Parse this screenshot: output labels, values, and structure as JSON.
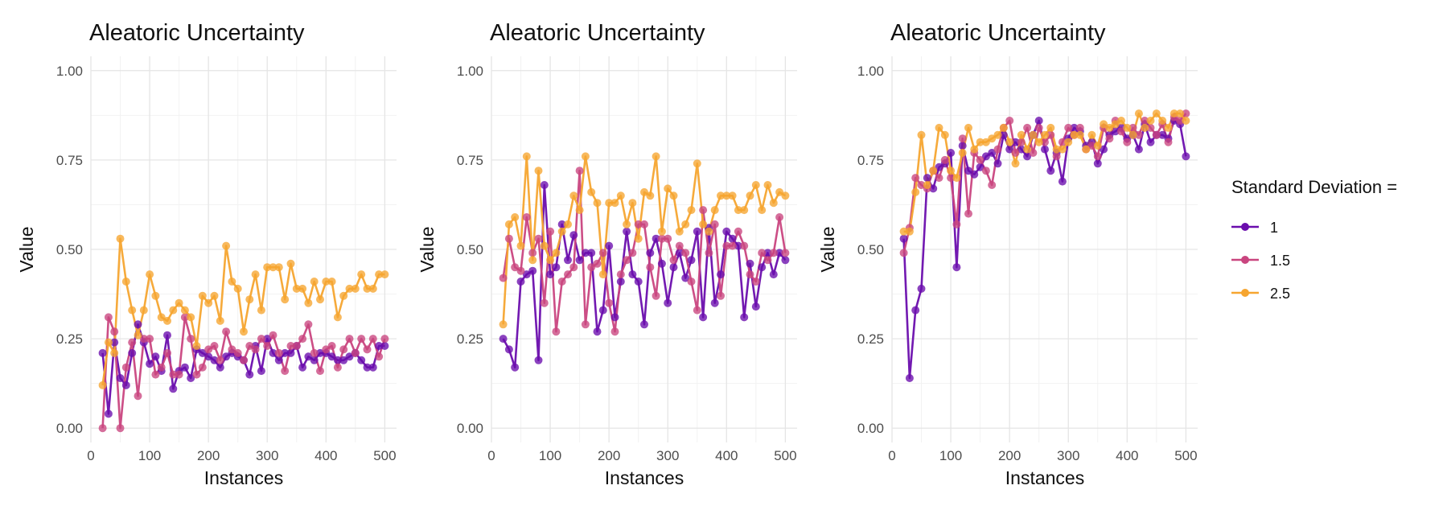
{
  "legend": {
    "title": "Standard Deviation =",
    "position": "right",
    "entries": [
      {
        "label": "1",
        "color": "#6a0dad"
      },
      {
        "label": "1.5",
        "color": "#c9457f"
      },
      {
        "label": "2.5",
        "color": "#f6a530"
      }
    ]
  },
  "chart_data": [
    {
      "type": "line",
      "title": "Aleatoric Uncertainty",
      "xlabel": "Instances",
      "ylabel": "Value",
      "xlim": [
        0,
        520
      ],
      "ylim": [
        -0.04,
        1.04
      ],
      "xticks": [
        0,
        100,
        200,
        300,
        400,
        500
      ],
      "xtick_labels": [
        "0",
        "100",
        "200",
        "300",
        "400",
        "500"
      ],
      "yticks": [
        0,
        0.25,
        0.5,
        0.75,
        1
      ],
      "ytick_labels": [
        "0.00",
        "0.25",
        "0.50",
        "0.75",
        "1.00"
      ],
      "grid": true,
      "x": [
        20,
        30,
        40,
        50,
        60,
        70,
        80,
        90,
        100,
        110,
        120,
        130,
        140,
        150,
        160,
        170,
        180,
        190,
        200,
        210,
        220,
        230,
        240,
        250,
        260,
        270,
        280,
        290,
        300,
        310,
        320,
        330,
        340,
        350,
        360,
        370,
        380,
        390,
        400,
        410,
        420,
        430,
        440,
        450,
        460,
        470,
        480,
        490,
        500
      ],
      "series": [
        {
          "name": "1",
          "color": "#6a0dad",
          "values": [
            0.21,
            0.04,
            0.24,
            0.14,
            0.12,
            0.21,
            0.29,
            0.24,
            0.18,
            0.2,
            0.16,
            0.26,
            0.11,
            0.16,
            0.17,
            0.14,
            0.22,
            0.21,
            0.2,
            0.19,
            0.17,
            0.2,
            0.21,
            0.2,
            0.19,
            0.15,
            0.23,
            0.16,
            0.25,
            0.21,
            0.19,
            0.21,
            0.21,
            0.23,
            0.17,
            0.2,
            0.19,
            0.21,
            0.21,
            0.2,
            0.19,
            0.19,
            0.2,
            0.21,
            0.19,
            0.17,
            0.17,
            0.23,
            0.23
          ]
        },
        {
          "name": "1.5",
          "color": "#c9457f",
          "values": [
            0.0,
            0.31,
            0.27,
            0.0,
            0.17,
            0.24,
            0.09,
            0.25,
            0.25,
            0.15,
            0.17,
            0.21,
            0.15,
            0.15,
            0.31,
            0.25,
            0.15,
            0.17,
            0.22,
            0.23,
            0.19,
            0.27,
            0.22,
            0.21,
            0.19,
            0.23,
            0.22,
            0.25,
            0.23,
            0.26,
            0.21,
            0.16,
            0.23,
            0.23,
            0.25,
            0.29,
            0.21,
            0.16,
            0.22,
            0.23,
            0.17,
            0.22,
            0.25,
            0.21,
            0.25,
            0.22,
            0.25,
            0.2,
            0.25
          ]
        },
        {
          "name": "2.5",
          "color": "#f6a530",
          "values": [
            0.12,
            0.24,
            0.21,
            0.53,
            0.41,
            0.33,
            0.26,
            0.33,
            0.43,
            0.37,
            0.31,
            0.3,
            0.33,
            0.35,
            0.33,
            0.31,
            0.23,
            0.37,
            0.35,
            0.37,
            0.3,
            0.51,
            0.41,
            0.39,
            0.27,
            0.36,
            0.43,
            0.33,
            0.45,
            0.45,
            0.45,
            0.36,
            0.46,
            0.39,
            0.39,
            0.35,
            0.41,
            0.36,
            0.41,
            0.41,
            0.31,
            0.37,
            0.39,
            0.39,
            0.43,
            0.39,
            0.39,
            0.43,
            0.43
          ]
        }
      ]
    },
    {
      "type": "line",
      "title": "Aleatoric Uncertainty",
      "xlabel": "Instances",
      "ylabel": "Value",
      "xlim": [
        0,
        520
      ],
      "ylim": [
        -0.04,
        1.04
      ],
      "xticks": [
        0,
        100,
        200,
        300,
        400,
        500
      ],
      "xtick_labels": [
        "0",
        "100",
        "200",
        "300",
        "400",
        "500"
      ],
      "yticks": [
        0,
        0.25,
        0.5,
        0.75,
        1
      ],
      "ytick_labels": [
        "0.00",
        "0.25",
        "0.50",
        "0.75",
        "1.00"
      ],
      "grid": true,
      "x": [
        20,
        30,
        40,
        50,
        60,
        70,
        80,
        90,
        100,
        110,
        120,
        130,
        140,
        150,
        160,
        170,
        180,
        190,
        200,
        210,
        220,
        230,
        240,
        250,
        260,
        270,
        280,
        290,
        300,
        310,
        320,
        330,
        340,
        350,
        360,
        370,
        380,
        390,
        400,
        410,
        420,
        430,
        440,
        450,
        460,
        470,
        480,
        490,
        500
      ],
      "series": [
        {
          "name": "1",
          "color": "#6a0dad",
          "values": [
            0.25,
            0.22,
            0.17,
            0.41,
            0.43,
            0.44,
            0.19,
            0.68,
            0.43,
            0.45,
            0.57,
            0.47,
            0.54,
            0.47,
            0.49,
            0.49,
            0.27,
            0.33,
            0.51,
            0.31,
            0.41,
            0.55,
            0.43,
            0.41,
            0.29,
            0.49,
            0.53,
            0.46,
            0.35,
            0.45,
            0.49,
            0.42,
            0.47,
            0.55,
            0.31,
            0.56,
            0.35,
            0.43,
            0.55,
            0.53,
            0.51,
            0.31,
            0.46,
            0.34,
            0.45,
            0.49,
            0.43,
            0.49,
            0.47
          ]
        },
        {
          "name": "1.5",
          "color": "#c9457f",
          "values": [
            0.42,
            0.53,
            0.45,
            0.44,
            0.59,
            0.49,
            0.53,
            0.35,
            0.55,
            0.27,
            0.41,
            0.43,
            0.45,
            0.72,
            0.29,
            0.45,
            0.46,
            0.49,
            0.35,
            0.27,
            0.43,
            0.47,
            0.49,
            0.57,
            0.57,
            0.45,
            0.37,
            0.53,
            0.53,
            0.47,
            0.51,
            0.49,
            0.41,
            0.33,
            0.61,
            0.49,
            0.57,
            0.37,
            0.51,
            0.51,
            0.55,
            0.51,
            0.43,
            0.41,
            0.49,
            0.47,
            0.49,
            0.59,
            0.49
          ]
        },
        {
          "name": "2.5",
          "color": "#f6a530",
          "values": [
            0.29,
            0.57,
            0.59,
            0.51,
            0.76,
            0.47,
            0.72,
            0.51,
            0.47,
            0.49,
            0.55,
            0.57,
            0.65,
            0.61,
            0.76,
            0.66,
            0.63,
            0.43,
            0.63,
            0.63,
            0.65,
            0.57,
            0.63,
            0.53,
            0.66,
            0.65,
            0.76,
            0.55,
            0.67,
            0.65,
            0.55,
            0.57,
            0.61,
            0.74,
            0.57,
            0.55,
            0.61,
            0.65,
            0.65,
            0.65,
            0.61,
            0.61,
            0.65,
            0.68,
            0.61,
            0.68,
            0.63,
            0.66,
            0.65
          ]
        }
      ]
    },
    {
      "type": "line",
      "title": "Aleatoric Uncertainty",
      "xlabel": "Instances",
      "ylabel": "Value",
      "xlim": [
        0,
        520
      ],
      "ylim": [
        -0.04,
        1.04
      ],
      "xticks": [
        0,
        100,
        200,
        300,
        400,
        500
      ],
      "xtick_labels": [
        "0",
        "100",
        "200",
        "300",
        "400",
        "500"
      ],
      "yticks": [
        0,
        0.25,
        0.5,
        0.75,
        1
      ],
      "ytick_labels": [
        "0.00",
        "0.25",
        "0.50",
        "0.75",
        "1.00"
      ],
      "grid": true,
      "x": [
        20,
        30,
        40,
        50,
        60,
        70,
        80,
        90,
        100,
        110,
        120,
        130,
        140,
        150,
        160,
        170,
        180,
        190,
        200,
        210,
        220,
        230,
        240,
        250,
        260,
        270,
        280,
        290,
        300,
        310,
        320,
        330,
        340,
        350,
        360,
        370,
        380,
        390,
        400,
        410,
        420,
        430,
        440,
        450,
        460,
        470,
        480,
        490,
        500
      ],
      "series": [
        {
          "name": "1",
          "color": "#6a0dad",
          "values": [
            0.53,
            0.14,
            0.33,
            0.39,
            0.7,
            0.67,
            0.73,
            0.74,
            0.77,
            0.45,
            0.79,
            0.72,
            0.71,
            0.73,
            0.76,
            0.77,
            0.74,
            0.82,
            0.78,
            0.8,
            0.78,
            0.76,
            0.82,
            0.86,
            0.78,
            0.72,
            0.77,
            0.69,
            0.81,
            0.84,
            0.83,
            0.79,
            0.8,
            0.74,
            0.78,
            0.82,
            0.83,
            0.84,
            0.81,
            0.82,
            0.78,
            0.85,
            0.8,
            0.82,
            0.82,
            0.81,
            0.86,
            0.85,
            0.76
          ]
        },
        {
          "name": "1.5",
          "color": "#c9457f",
          "values": [
            0.49,
            0.56,
            0.7,
            0.68,
            0.67,
            0.72,
            0.7,
            0.75,
            0.7,
            0.57,
            0.81,
            0.6,
            0.77,
            0.75,
            0.72,
            0.68,
            0.78,
            0.84,
            0.86,
            0.77,
            0.8,
            0.84,
            0.77,
            0.84,
            0.8,
            0.82,
            0.76,
            0.8,
            0.84,
            0.82,
            0.84,
            0.78,
            0.79,
            0.76,
            0.84,
            0.81,
            0.86,
            0.83,
            0.8,
            0.84,
            0.82,
            0.86,
            0.84,
            0.82,
            0.85,
            0.8,
            0.87,
            0.86,
            0.88
          ]
        },
        {
          "name": "2.5",
          "color": "#f6a530",
          "values": [
            0.55,
            0.55,
            0.66,
            0.82,
            0.68,
            0.72,
            0.84,
            0.82,
            0.72,
            0.7,
            0.77,
            0.84,
            0.78,
            0.8,
            0.8,
            0.81,
            0.82,
            0.84,
            0.8,
            0.74,
            0.82,
            0.78,
            0.82,
            0.8,
            0.82,
            0.84,
            0.78,
            0.78,
            0.8,
            0.82,
            0.82,
            0.78,
            0.82,
            0.79,
            0.85,
            0.84,
            0.85,
            0.86,
            0.84,
            0.82,
            0.88,
            0.84,
            0.86,
            0.88,
            0.86,
            0.84,
            0.88,
            0.88,
            0.86
          ]
        }
      ]
    }
  ]
}
